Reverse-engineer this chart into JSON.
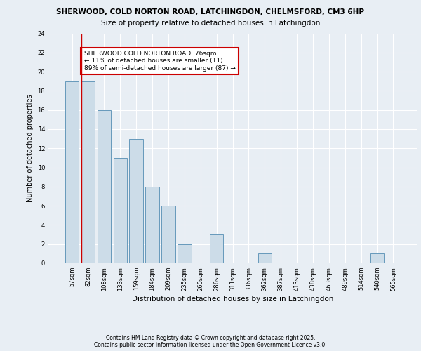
{
  "title1": "SHERWOOD, COLD NORTON ROAD, LATCHINGDON, CHELMSFORD, CM3 6HP",
  "title2": "Size of property relative to detached houses in Latchingdon",
  "xlabel": "Distribution of detached houses by size in Latchingdon",
  "ylabel": "Number of detached properties",
  "categories": [
    "57sqm",
    "82sqm",
    "108sqm",
    "133sqm",
    "159sqm",
    "184sqm",
    "209sqm",
    "235sqm",
    "260sqm",
    "286sqm",
    "311sqm",
    "336sqm",
    "362sqm",
    "387sqm",
    "413sqm",
    "438sqm",
    "463sqm",
    "489sqm",
    "514sqm",
    "540sqm",
    "565sqm"
  ],
  "values": [
    19,
    19,
    16,
    11,
    13,
    8,
    6,
    2,
    0,
    3,
    0,
    0,
    1,
    0,
    0,
    0,
    0,
    0,
    0,
    1,
    0
  ],
  "bar_color": "#ccdce8",
  "bar_edge_color": "#6699bb",
  "annotation_text": "SHERWOOD COLD NORTON ROAD: 76sqm\n← 11% of detached houses are smaller (11)\n89% of semi-detached houses are larger (87) →",
  "annotation_box_color": "#ffffff",
  "annotation_box_edge": "#cc0000",
  "ylim": [
    0,
    24
  ],
  "yticks": [
    0,
    2,
    4,
    6,
    8,
    10,
    12,
    14,
    16,
    18,
    20,
    22,
    24
  ],
  "footer": "Contains HM Land Registry data © Crown copyright and database right 2025.\nContains public sector information licensed under the Open Government Licence v3.0.",
  "bg_color": "#e8eef4",
  "plot_bg_color": "#e8eef4",
  "grid_color": "#ffffff",
  "red_line_color": "#cc0000",
  "title1_fontsize": 7.5,
  "title2_fontsize": 7.5,
  "xlabel_fontsize": 7.5,
  "ylabel_fontsize": 7.0,
  "tick_fontsize": 6.0,
  "annot_fontsize": 6.5,
  "footer_fontsize": 5.5
}
